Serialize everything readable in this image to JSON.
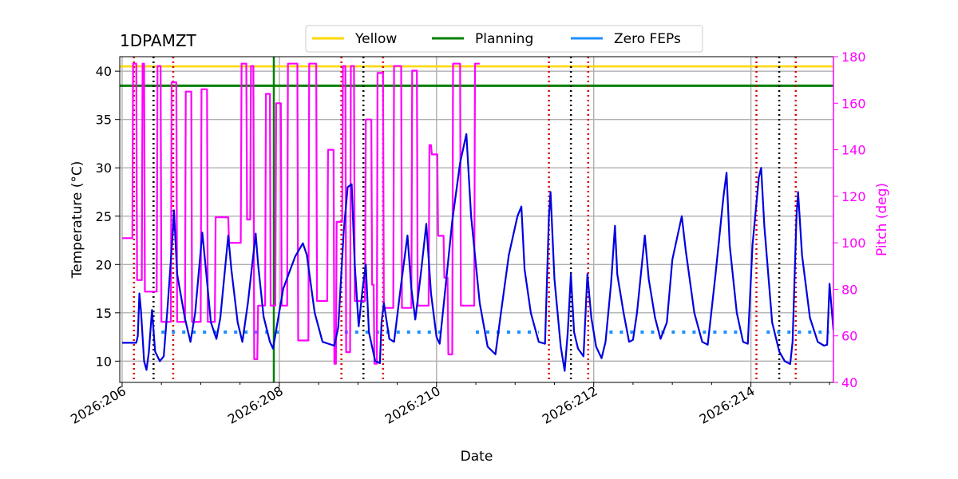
{
  "chart_data": {
    "type": "line",
    "title": "1DPAMZT",
    "xlabel": "Date",
    "ylabel": "Temperature ($^\\circ$C)",
    "ylabel_display": "Temperature (°C)",
    "y2label": "Pitch (deg)",
    "x_unit": "day of year 2026",
    "xlim": [
      205.97,
      215.05
    ],
    "ylim": [
      7.8,
      41.5
    ],
    "y2lim": [
      40,
      180
    ],
    "grid": true,
    "legend_position": "top-center",
    "x_tick_labels": [
      {
        "value": 206,
        "label": "2026:206"
      },
      {
        "value": 208,
        "label": "2026:208"
      },
      {
        "value": 210,
        "label": "2026:210"
      },
      {
        "value": 212,
        "label": "2026:212"
      },
      {
        "value": 214,
        "label": "2026:214"
      }
    ],
    "y_ticks": [
      10,
      15,
      20,
      25,
      30,
      35,
      40
    ],
    "y2_ticks": [
      40,
      60,
      80,
      100,
      120,
      140,
      160,
      180
    ],
    "legend": [
      {
        "name": "Yellow",
        "color": "#FFD700"
      },
      {
        "name": "Planning",
        "color": "#008000"
      },
      {
        "name": "Zero FEPs",
        "color": "#1E90FF"
      }
    ],
    "limits": {
      "yellow": 40.5,
      "planning": 38.5,
      "planning_vertical_x": 207.93
    },
    "colors": {
      "temperature": "#0000E0",
      "pitch": "#FF00FF",
      "yellow": "#FFD700",
      "planning": "#008000",
      "zero_feps": "#1E90FF",
      "red_lines": "#DD0000",
      "black_lines": "#000000",
      "grid": "#B0B0B0",
      "pitch_axis": "#FF00FF"
    },
    "red_vlines": [
      206.15,
      206.65,
      208.79,
      209.32,
      211.43,
      211.93,
      214.07,
      214.57
    ],
    "black_vlines": [
      206.4,
      209.07,
      211.71,
      214.36
    ],
    "zero_feps_segments": [
      [
        206.5,
        208.0
      ],
      [
        208.7,
        210.1
      ],
      [
        210.5,
        211.3
      ],
      [
        212.2,
        213.9
      ],
      [
        214.2,
        215.0
      ]
    ],
    "zero_feps_value": 13,
    "temperature_series": {
      "name": "1DPAMZT",
      "points": [
        [
          206.0,
          11.9
        ],
        [
          206.18,
          11.9
        ],
        [
          206.2,
          12.6
        ],
        [
          206.22,
          17.0
        ],
        [
          206.24,
          15.2
        ],
        [
          206.28,
          10.0
        ],
        [
          206.31,
          9.1
        ],
        [
          206.34,
          10.9
        ],
        [
          206.38,
          15.3
        ],
        [
          206.42,
          11.0
        ],
        [
          206.48,
          10.0
        ],
        [
          206.53,
          10.5
        ],
        [
          206.58,
          15.8
        ],
        [
          206.65,
          24.0
        ],
        [
          206.66,
          25.6
        ],
        [
          206.7,
          19.0
        ],
        [
          206.8,
          14.4
        ],
        [
          206.87,
          12.0
        ],
        [
          206.93,
          15.0
        ],
        [
          207.02,
          23.3
        ],
        [
          207.06,
          20.0
        ],
        [
          207.13,
          14.0
        ],
        [
          207.2,
          12.3
        ],
        [
          207.25,
          14.5
        ],
        [
          207.35,
          23.0
        ],
        [
          207.39,
          19.5
        ],
        [
          207.47,
          14.0
        ],
        [
          207.53,
          12.0
        ],
        [
          207.6,
          16.0
        ],
        [
          207.7,
          23.2
        ],
        [
          207.73,
          20.0
        ],
        [
          207.8,
          14.6
        ],
        [
          207.88,
          12.0
        ],
        [
          207.92,
          11.3
        ],
        [
          208.05,
          17.5
        ],
        [
          208.2,
          20.8
        ],
        [
          208.3,
          22.2
        ],
        [
          208.35,
          21.0
        ],
        [
          208.45,
          15.0
        ],
        [
          208.55,
          12.0
        ],
        [
          208.7,
          11.6
        ],
        [
          208.75,
          13.5
        ],
        [
          208.82,
          23.5
        ],
        [
          208.87,
          28.0
        ],
        [
          208.92,
          28.3
        ],
        [
          208.96,
          20.0
        ],
        [
          209.01,
          13.6
        ],
        [
          209.06,
          17.5
        ],
        [
          209.1,
          20.0
        ],
        [
          209.14,
          13.0
        ],
        [
          209.22,
          10.0
        ],
        [
          209.28,
          9.8
        ],
        [
          209.3,
          14.0
        ],
        [
          209.33,
          16.0
        ],
        [
          209.4,
          12.3
        ],
        [
          209.46,
          12.0
        ],
        [
          209.55,
          18.0
        ],
        [
          209.63,
          23.0
        ],
        [
          209.68,
          17.5
        ],
        [
          209.73,
          14.3
        ],
        [
          209.8,
          19.0
        ],
        [
          209.87,
          24.2
        ],
        [
          209.93,
          17.0
        ],
        [
          210.0,
          12.5
        ],
        [
          210.04,
          11.8
        ],
        [
          210.1,
          16.5
        ],
        [
          210.2,
          24.5
        ],
        [
          210.3,
          30.5
        ],
        [
          210.38,
          33.5
        ],
        [
          210.44,
          25.0
        ],
        [
          210.55,
          16.0
        ],
        [
          210.65,
          11.5
        ],
        [
          210.75,
          10.7
        ],
        [
          210.82,
          15.0
        ],
        [
          210.92,
          21.0
        ],
        [
          211.03,
          25.0
        ],
        [
          211.08,
          26.0
        ],
        [
          211.12,
          19.5
        ],
        [
          211.2,
          15.0
        ],
        [
          211.3,
          12.0
        ],
        [
          211.38,
          11.8
        ],
        [
          211.43,
          25.0
        ],
        [
          211.45,
          27.5
        ],
        [
          211.5,
          18.5
        ],
        [
          211.58,
          11.5
        ],
        [
          211.63,
          9.0
        ],
        [
          211.67,
          13.0
        ],
        [
          211.71,
          19.0
        ],
        [
          211.75,
          13.0
        ],
        [
          211.8,
          11.3
        ],
        [
          211.87,
          10.5
        ],
        [
          211.92,
          19.0
        ],
        [
          211.97,
          14.5
        ],
        [
          212.03,
          11.5
        ],
        [
          212.1,
          10.3
        ],
        [
          212.15,
          12.0
        ],
        [
          212.22,
          18.0
        ],
        [
          212.27,
          24.0
        ],
        [
          212.3,
          19.0
        ],
        [
          212.38,
          15.0
        ],
        [
          212.45,
          12.0
        ],
        [
          212.5,
          12.2
        ],
        [
          212.55,
          15.0
        ],
        [
          212.65,
          23.0
        ],
        [
          212.7,
          18.5
        ],
        [
          212.78,
          14.5
        ],
        [
          212.85,
          12.3
        ],
        [
          212.93,
          14.0
        ],
        [
          213.0,
          20.5
        ],
        [
          213.12,
          25.0
        ],
        [
          213.17,
          21.5
        ],
        [
          213.28,
          15.0
        ],
        [
          213.38,
          12.0
        ],
        [
          213.45,
          11.7
        ],
        [
          213.55,
          19.0
        ],
        [
          213.65,
          27.0
        ],
        [
          213.69,
          29.5
        ],
        [
          213.73,
          22.0
        ],
        [
          213.82,
          15.0
        ],
        [
          213.9,
          12.0
        ],
        [
          213.96,
          11.8
        ],
        [
          214.02,
          22.0
        ],
        [
          214.1,
          29.0
        ],
        [
          214.13,
          30.0
        ],
        [
          214.17,
          24.0
        ],
        [
          214.27,
          14.0
        ],
        [
          214.36,
          11.0
        ],
        [
          214.43,
          10.0
        ],
        [
          214.5,
          9.7
        ],
        [
          214.53,
          12.0
        ],
        [
          214.58,
          25.0
        ],
        [
          214.6,
          27.5
        ],
        [
          214.65,
          21.0
        ],
        [
          214.75,
          14.5
        ],
        [
          214.85,
          12.0
        ],
        [
          214.93,
          11.6
        ],
        [
          214.97,
          11.7
        ],
        [
          215.0,
          18.0
        ],
        [
          215.05,
          13.2
        ]
      ]
    },
    "pitch_series": {
      "name": "Pitch",
      "points": [
        [
          206.0,
          102
        ],
        [
          206.13,
          102
        ],
        [
          206.14,
          177
        ],
        [
          206.18,
          177
        ],
        [
          206.19,
          84
        ],
        [
          206.25,
          84
        ],
        [
          206.26,
          177
        ],
        [
          206.28,
          177
        ],
        [
          206.29,
          79
        ],
        [
          206.36,
          79
        ],
        [
          206.37,
          79
        ],
        [
          206.44,
          79
        ],
        [
          206.45,
          176
        ],
        [
          206.49,
          176
        ],
        [
          206.5,
          66
        ],
        [
          206.62,
          66
        ],
        [
          206.63,
          169
        ],
        [
          206.69,
          169
        ],
        [
          206.7,
          66
        ],
        [
          206.8,
          66
        ],
        [
          206.81,
          165
        ],
        [
          206.88,
          165
        ],
        [
          206.89,
          66
        ],
        [
          207.0,
          66
        ],
        [
          207.01,
          166
        ],
        [
          207.08,
          166
        ],
        [
          207.09,
          66
        ],
        [
          207.18,
          66
        ],
        [
          207.19,
          111
        ],
        [
          207.35,
          111
        ],
        [
          207.36,
          100
        ],
        [
          207.51,
          100
        ],
        [
          207.52,
          177
        ],
        [
          207.58,
          177
        ],
        [
          207.59,
          110
        ],
        [
          207.63,
          110
        ],
        [
          207.64,
          176
        ],
        [
          207.67,
          176
        ],
        [
          207.68,
          50
        ],
        [
          207.72,
          50
        ],
        [
          207.73,
          73
        ],
        [
          207.82,
          73
        ],
        [
          207.83,
          164
        ],
        [
          207.88,
          164
        ],
        [
          207.89,
          73
        ],
        [
          207.95,
          73
        ],
        [
          207.96,
          160
        ],
        [
          208.02,
          160
        ],
        [
          208.03,
          73
        ],
        [
          208.1,
          73
        ],
        [
          208.11,
          177
        ],
        [
          208.23,
          177
        ],
        [
          208.24,
          58
        ],
        [
          208.37,
          58
        ],
        [
          208.38,
          177
        ],
        [
          208.47,
          177
        ],
        [
          208.48,
          75
        ],
        [
          208.61,
          75
        ],
        [
          208.62,
          140
        ],
        [
          208.69,
          140
        ],
        [
          208.7,
          48
        ],
        [
          208.72,
          48
        ],
        [
          208.73,
          109
        ],
        [
          208.8,
          109
        ],
        [
          208.81,
          176
        ],
        [
          208.84,
          176
        ],
        [
          208.85,
          53
        ],
        [
          208.9,
          53
        ],
        [
          208.91,
          176
        ],
        [
          208.95,
          176
        ],
        [
          208.96,
          75
        ],
        [
          209.09,
          75
        ],
        [
          209.1,
          153
        ],
        [
          209.17,
          153
        ],
        [
          209.18,
          82
        ],
        [
          209.2,
          82
        ],
        [
          209.21,
          48
        ],
        [
          209.24,
          48
        ],
        [
          209.25,
          173
        ],
        [
          209.32,
          173
        ],
        [
          209.33,
          72
        ],
        [
          209.45,
          72
        ],
        [
          209.46,
          176
        ],
        [
          209.55,
          176
        ],
        [
          209.56,
          72
        ],
        [
          209.68,
          72
        ],
        [
          209.69,
          174
        ],
        [
          209.75,
          174
        ],
        [
          209.76,
          73
        ],
        [
          209.9,
          73
        ],
        [
          209.91,
          142
        ],
        [
          209.93,
          142
        ],
        [
          209.94,
          138
        ],
        [
          210.01,
          138
        ],
        [
          210.02,
          103
        ],
        [
          210.09,
          103
        ],
        [
          210.1,
          85
        ],
        [
          210.14,
          85
        ],
        [
          210.15,
          52
        ],
        [
          210.2,
          52
        ],
        [
          210.21,
          177
        ],
        [
          210.3,
          177
        ],
        [
          210.31,
          73
        ],
        [
          210.45,
          73
        ],
        [
          210.46,
          73
        ],
        [
          210.48,
          73
        ],
        [
          210.49,
          177
        ],
        [
          210.55,
          177
        ]
      ]
    }
  }
}
